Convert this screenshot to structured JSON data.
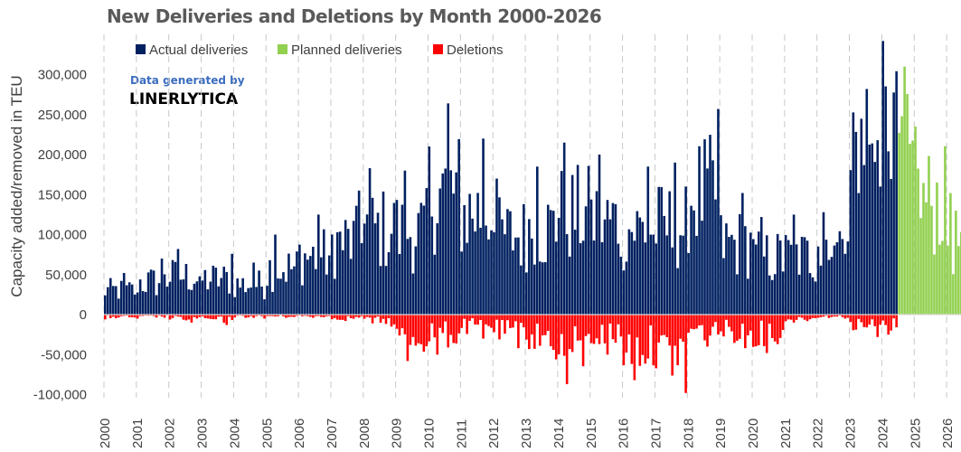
{
  "chart_data": {
    "type": "bar",
    "title": "New Deliveries and Deletions by Month 2000-2026",
    "ylabel": "Capacity added/removed in TEU",
    "xlabel": "",
    "ylim": [
      -100000,
      350000
    ],
    "yticks": [
      -100000,
      -50000,
      0,
      50000,
      100000,
      150000,
      200000,
      250000,
      300000
    ],
    "ytick_labels": [
      "-100,000",
      "-50,000",
      "0",
      "50,000",
      "100,000",
      "150,000",
      "200,000",
      "250,000",
      "300,000"
    ],
    "years": [
      "2000",
      "2001",
      "2002",
      "2003",
      "2004",
      "2005",
      "2006",
      "2007",
      "2008",
      "2009",
      "2010",
      "2011",
      "2012",
      "2013",
      "2014",
      "2015",
      "2016",
      "2017",
      "2018",
      "2019",
      "2020",
      "2021",
      "2022",
      "2023",
      "2024",
      "2025",
      "2026"
    ],
    "legend_position": "top",
    "grid": "vertical dashed yearly",
    "colors": {
      "actual": "#002060",
      "planned": "#92D050",
      "deletions": "#FF0000"
    },
    "series": [
      {
        "name": "Actual deliveries",
        "period": "2000-01 to 2024-06",
        "yearly_peak_values": [
          52000,
          70000,
          82000,
          76000,
          65000,
          100000,
          125000,
          155000,
          183000,
          180000,
          264000,
          220000,
          170000,
          185000,
          215000,
          200000,
          185000,
          190000,
          257000,
          152000,
          122000,
          125000,
          128000,
          282000,
          342000
        ]
      },
      {
        "name": "Planned deliveries",
        "period": "2024-07 to 2026-12",
        "yearly_peak_values": [
          310000,
          235000,
          152000
        ]
      },
      {
        "name": "Deletions",
        "period": "2000-01 to 2024-06",
        "yearly_peak_values": [
          -6000,
          -5000,
          -10000,
          -13000,
          -5000,
          -4000,
          -4000,
          -8000,
          -15000,
          -58000,
          -50000,
          -30000,
          -42000,
          -56000,
          -87000,
          -50000,
          -82000,
          -98000,
          -40000,
          -42000,
          -48000,
          -10000,
          -5000,
          -28000,
          -25000
        ]
      }
    ]
  },
  "watermark": {
    "line1": "Data generated by",
    "line2": "LINERLYTICA"
  }
}
